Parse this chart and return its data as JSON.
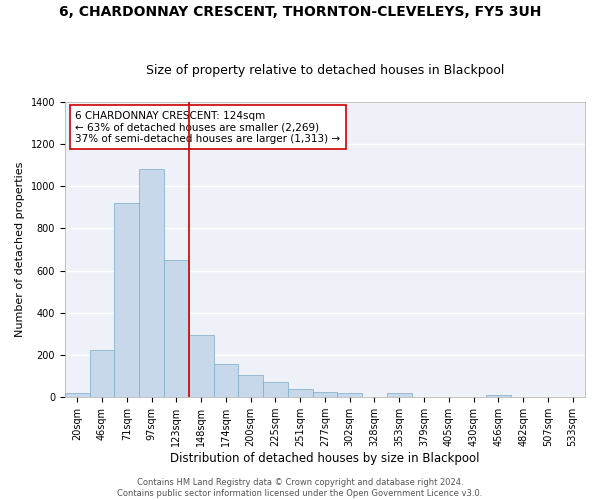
{
  "title": "6, CHARDONNAY CRESCENT, THORNTON-CLEVELEYS, FY5 3UH",
  "subtitle": "Size of property relative to detached houses in Blackpool",
  "xlabel": "Distribution of detached houses by size in Blackpool",
  "ylabel": "Number of detached properties",
  "bar_color": "#c8d8eb",
  "bar_edgecolor": "#7aaac8",
  "bar_linewidth": 0.5,
  "categories": [
    "20sqm",
    "46sqm",
    "71sqm",
    "97sqm",
    "123sqm",
    "148sqm",
    "174sqm",
    "200sqm",
    "225sqm",
    "251sqm",
    "277sqm",
    "302sqm",
    "328sqm",
    "353sqm",
    "379sqm",
    "405sqm",
    "430sqm",
    "456sqm",
    "482sqm",
    "507sqm",
    "533sqm"
  ],
  "values": [
    18,
    225,
    918,
    1080,
    650,
    295,
    158,
    107,
    70,
    38,
    27,
    22,
    0,
    18,
    0,
    0,
    0,
    10,
    0,
    0,
    0
  ],
  "vline_pos": 4.5,
  "vline_color": "#cc0000",
  "annotation_text": "6 CHARDONNAY CRESCENT: 124sqm\n← 63% of detached houses are smaller (2,269)\n37% of semi-detached houses are larger (1,313) →",
  "ylim": [
    0,
    1400
  ],
  "yticks": [
    0,
    200,
    400,
    600,
    800,
    1000,
    1200,
    1400
  ],
  "background_color": "#eef2f8",
  "grid_color": "#ffffff",
  "footnote": "Contains HM Land Registry data © Crown copyright and database right 2024.\nContains public sector information licensed under the Open Government Licence v3.0.",
  "title_fontsize": 10,
  "subtitle_fontsize": 9,
  "xlabel_fontsize": 8.5,
  "ylabel_fontsize": 8,
  "tick_fontsize": 7,
  "annotation_fontsize": 7.5,
  "footnote_fontsize": 6
}
